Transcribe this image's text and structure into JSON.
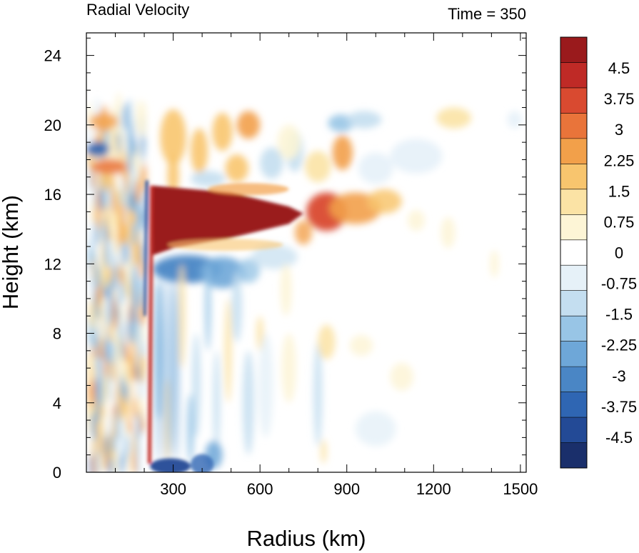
{
  "chart_data": {
    "type": "heatmap",
    "title": "Radial Velocity",
    "time_label": "Time = 350",
    "xlabel": "Radius (km)",
    "ylabel": "Height (km)",
    "xlim": [
      0,
      1520
    ],
    "ylim": [
      0,
      25.3
    ],
    "x_ticks": [
      300,
      600,
      900,
      1200,
      1500
    ],
    "y_ticks": [
      0,
      4,
      8,
      12,
      16,
      20,
      24
    ],
    "colorbar": {
      "labels": [
        "4.5",
        "3.75",
        "3",
        "2.25",
        "1.5",
        "0.75",
        "0",
        "-0.75",
        "-1.5",
        "-2.25",
        "-3",
        "-3.75",
        "-4.5"
      ],
      "label_values": [
        4.5,
        3.75,
        3,
        2.25,
        1.5,
        0.75,
        0,
        -0.75,
        -1.5,
        -2.25,
        -3,
        -3.75,
        -4.5
      ],
      "vmin": -5.25,
      "vmax": 5.25,
      "colors": [
        "#1a2f6b",
        "#234a96",
        "#2f66b3",
        "#4a86c5",
        "#6ea7d8",
        "#98c5e6",
        "#c4def0",
        "#e6f1f8",
        "#ffffff",
        "#fdf5d6",
        "#fbe3a5",
        "#f8c56e",
        "#f2a04a",
        "#e9743a",
        "#d94a30",
        "#bf2a26",
        "#9a1a1c"
      ]
    },
    "features": [
      {
        "name": "upper-level outflow jet",
        "r_range": [
          230,
          740
        ],
        "z_range": [
          12.6,
          16.5
        ],
        "max_value": 5.25
      },
      {
        "name": "outflow extension",
        "r_range": [
          740,
          1080
        ],
        "z_range": [
          14.0,
          16.2
        ],
        "value": 3.0
      },
      {
        "name": "eyewall inflow below outflow",
        "r_range": [
          230,
          560
        ],
        "z_range": [
          11.0,
          12.5
        ],
        "value": -3.0
      },
      {
        "name": "eyewall updraft strip",
        "r_range": [
          205,
          232
        ],
        "z_range": [
          0,
          16.5
        ],
        "value": 4.5
      },
      {
        "name": "boundary layer inflow",
        "r_range": [
          220,
          450
        ],
        "z_range": [
          0,
          1.0
        ],
        "value": -4.0
      }
    ]
  }
}
